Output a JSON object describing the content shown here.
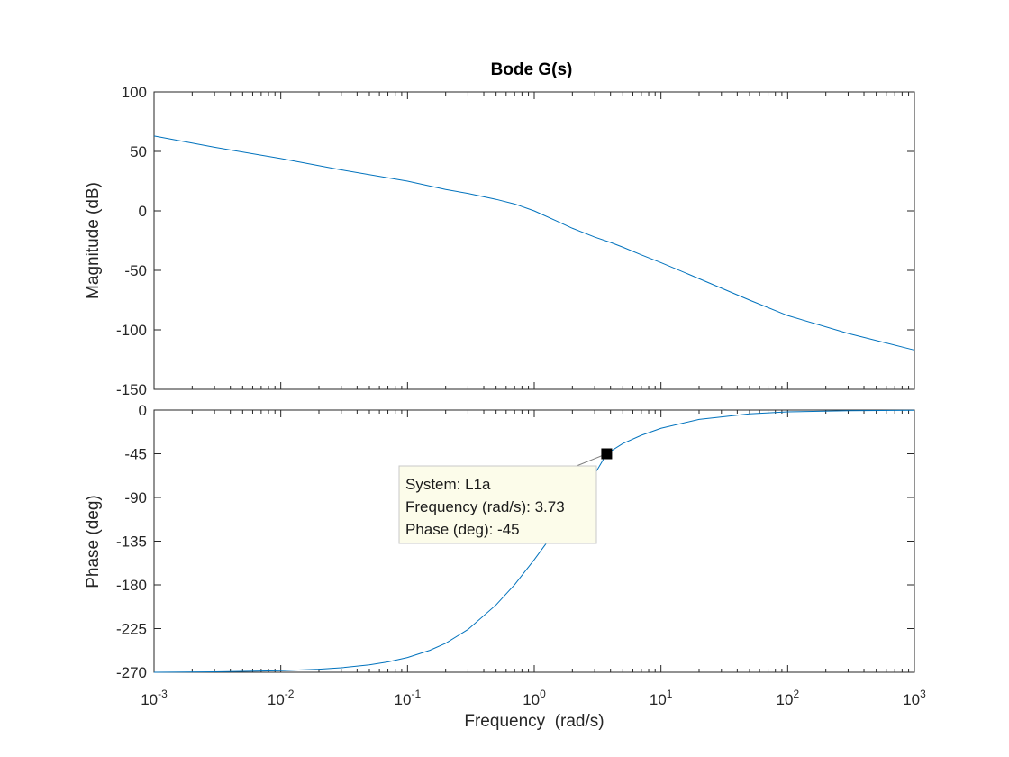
{
  "chart_data": {
    "type": "line",
    "title": "Bode G(s)",
    "xlabel": "Frequency  (rad/s)",
    "xscale": "log",
    "xlim": [
      0.001,
      1000
    ],
    "x_ticks": [
      {
        "base": "10",
        "exp": "-3"
      },
      {
        "base": "10",
        "exp": "-2"
      },
      {
        "base": "10",
        "exp": "-1"
      },
      {
        "base": "10",
        "exp": "0"
      },
      {
        "base": "10",
        "exp": "1"
      },
      {
        "base": "10",
        "exp": "2"
      },
      {
        "base": "10",
        "exp": "3"
      }
    ],
    "line_color": "#0072BD",
    "grid": false,
    "panels": [
      {
        "name": "magnitude",
        "ylabel": "Magnitude (dB)",
        "ylim": [
          -150,
          100
        ],
        "y_ticks": [
          "100",
          "50",
          "0",
          "-50",
          "-100",
          "-150"
        ],
        "series": [
          {
            "x": [
              0.001,
              0.003,
              0.01,
              0.03,
              0.1,
              0.2,
              0.3,
              0.5,
              0.7,
              1,
              1.5,
              2,
              3,
              4,
              5,
              7,
              10,
              20,
              50,
              100,
              300,
              1000
            ],
            "values": [
              63,
              53.5,
              44,
              34.5,
              25,
              18,
              14.7,
              9.7,
              5.8,
              0,
              -8.5,
              -14.6,
              -22,
              -26.5,
              -30.5,
              -37,
              -43.5,
              -57,
              -75,
              -88,
              -103,
              -117
            ]
          }
        ]
      },
      {
        "name": "phase",
        "ylabel": "Phase (deg)",
        "ylim": [
          -270,
          0
        ],
        "y_ticks": [
          "0",
          "-45",
          "-90",
          "-135",
          "-180",
          "-225",
          "-270"
        ],
        "series": [
          {
            "x": [
              0.001,
              0.003,
              0.01,
              0.02,
              0.03,
              0.05,
              0.07,
              0.1,
              0.15,
              0.2,
              0.3,
              0.5,
              0.7,
              1,
              1.5,
              2,
              3,
              3.73,
              5,
              7,
              10,
              20,
              50,
              100,
              300,
              1000
            ],
            "values": [
              -270,
              -269.5,
              -268.4,
              -266.9,
              -265.4,
              -262.3,
              -259.3,
              -254.8,
              -247.4,
              -240.1,
              -225.9,
              -200.6,
              -179.8,
              -154.1,
              -122.8,
              -101.8,
              -66,
              -45,
              -34.5,
              -26,
              -18.8,
              -9.6,
              -3.9,
              -1.9,
              -0.7,
              -0.2
            ]
          }
        ]
      }
    ],
    "datatip": {
      "system": "System: L1a",
      "frequency": "Frequency (rad/s): 3.73",
      "phase": "Phase (deg): -45",
      "x": 3.73,
      "y": -45
    }
  }
}
